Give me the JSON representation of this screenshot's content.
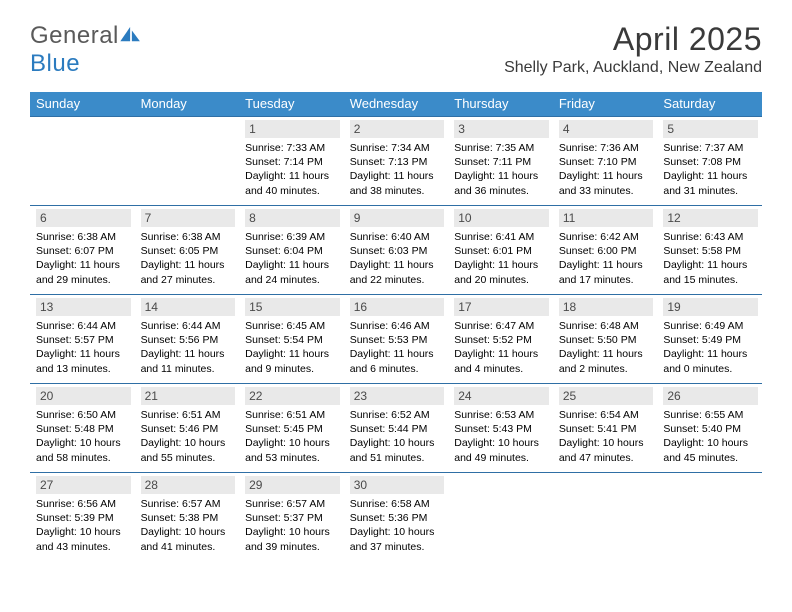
{
  "logo": {
    "part1": "General",
    "part2": "Blue"
  },
  "title": "April 2025",
  "subtitle": "Shelly Park, Auckland, New Zealand",
  "theme": {
    "header_bg": "#3b8bc9",
    "header_text": "#ffffff",
    "daynum_bg": "#e9e9e9",
    "daynum_text": "#4a4a4a",
    "row_border": "#2f6fa5",
    "title_color": "#3a3a3a",
    "logo_gray": "#5a5a5a",
    "logo_blue": "#2b7bbf",
    "body_text": "#000000",
    "page_bg": "#ffffff",
    "info_fontsize": 10.5,
    "header_fontsize": 13,
    "title_fontsize": 32,
    "subtitle_fontsize": 16
  },
  "weekdays": [
    "Sunday",
    "Monday",
    "Tuesday",
    "Wednesday",
    "Thursday",
    "Friday",
    "Saturday"
  ],
  "weeks": [
    [
      null,
      null,
      {
        "n": "1",
        "sunrise": "Sunrise: 7:33 AM",
        "sunset": "Sunset: 7:14 PM",
        "daylight": "Daylight: 11 hours and 40 minutes."
      },
      {
        "n": "2",
        "sunrise": "Sunrise: 7:34 AM",
        "sunset": "Sunset: 7:13 PM",
        "daylight": "Daylight: 11 hours and 38 minutes."
      },
      {
        "n": "3",
        "sunrise": "Sunrise: 7:35 AM",
        "sunset": "Sunset: 7:11 PM",
        "daylight": "Daylight: 11 hours and 36 minutes."
      },
      {
        "n": "4",
        "sunrise": "Sunrise: 7:36 AM",
        "sunset": "Sunset: 7:10 PM",
        "daylight": "Daylight: 11 hours and 33 minutes."
      },
      {
        "n": "5",
        "sunrise": "Sunrise: 7:37 AM",
        "sunset": "Sunset: 7:08 PM",
        "daylight": "Daylight: 11 hours and 31 minutes."
      }
    ],
    [
      {
        "n": "6",
        "sunrise": "Sunrise: 6:38 AM",
        "sunset": "Sunset: 6:07 PM",
        "daylight": "Daylight: 11 hours and 29 minutes."
      },
      {
        "n": "7",
        "sunrise": "Sunrise: 6:38 AM",
        "sunset": "Sunset: 6:05 PM",
        "daylight": "Daylight: 11 hours and 27 minutes."
      },
      {
        "n": "8",
        "sunrise": "Sunrise: 6:39 AM",
        "sunset": "Sunset: 6:04 PM",
        "daylight": "Daylight: 11 hours and 24 minutes."
      },
      {
        "n": "9",
        "sunrise": "Sunrise: 6:40 AM",
        "sunset": "Sunset: 6:03 PM",
        "daylight": "Daylight: 11 hours and 22 minutes."
      },
      {
        "n": "10",
        "sunrise": "Sunrise: 6:41 AM",
        "sunset": "Sunset: 6:01 PM",
        "daylight": "Daylight: 11 hours and 20 minutes."
      },
      {
        "n": "11",
        "sunrise": "Sunrise: 6:42 AM",
        "sunset": "Sunset: 6:00 PM",
        "daylight": "Daylight: 11 hours and 17 minutes."
      },
      {
        "n": "12",
        "sunrise": "Sunrise: 6:43 AM",
        "sunset": "Sunset: 5:58 PM",
        "daylight": "Daylight: 11 hours and 15 minutes."
      }
    ],
    [
      {
        "n": "13",
        "sunrise": "Sunrise: 6:44 AM",
        "sunset": "Sunset: 5:57 PM",
        "daylight": "Daylight: 11 hours and 13 minutes."
      },
      {
        "n": "14",
        "sunrise": "Sunrise: 6:44 AM",
        "sunset": "Sunset: 5:56 PM",
        "daylight": "Daylight: 11 hours and 11 minutes."
      },
      {
        "n": "15",
        "sunrise": "Sunrise: 6:45 AM",
        "sunset": "Sunset: 5:54 PM",
        "daylight": "Daylight: 11 hours and 9 minutes."
      },
      {
        "n": "16",
        "sunrise": "Sunrise: 6:46 AM",
        "sunset": "Sunset: 5:53 PM",
        "daylight": "Daylight: 11 hours and 6 minutes."
      },
      {
        "n": "17",
        "sunrise": "Sunrise: 6:47 AM",
        "sunset": "Sunset: 5:52 PM",
        "daylight": "Daylight: 11 hours and 4 minutes."
      },
      {
        "n": "18",
        "sunrise": "Sunrise: 6:48 AM",
        "sunset": "Sunset: 5:50 PM",
        "daylight": "Daylight: 11 hours and 2 minutes."
      },
      {
        "n": "19",
        "sunrise": "Sunrise: 6:49 AM",
        "sunset": "Sunset: 5:49 PM",
        "daylight": "Daylight: 11 hours and 0 minutes."
      }
    ],
    [
      {
        "n": "20",
        "sunrise": "Sunrise: 6:50 AM",
        "sunset": "Sunset: 5:48 PM",
        "daylight": "Daylight: 10 hours and 58 minutes."
      },
      {
        "n": "21",
        "sunrise": "Sunrise: 6:51 AM",
        "sunset": "Sunset: 5:46 PM",
        "daylight": "Daylight: 10 hours and 55 minutes."
      },
      {
        "n": "22",
        "sunrise": "Sunrise: 6:51 AM",
        "sunset": "Sunset: 5:45 PM",
        "daylight": "Daylight: 10 hours and 53 minutes."
      },
      {
        "n": "23",
        "sunrise": "Sunrise: 6:52 AM",
        "sunset": "Sunset: 5:44 PM",
        "daylight": "Daylight: 10 hours and 51 minutes."
      },
      {
        "n": "24",
        "sunrise": "Sunrise: 6:53 AM",
        "sunset": "Sunset: 5:43 PM",
        "daylight": "Daylight: 10 hours and 49 minutes."
      },
      {
        "n": "25",
        "sunrise": "Sunrise: 6:54 AM",
        "sunset": "Sunset: 5:41 PM",
        "daylight": "Daylight: 10 hours and 47 minutes."
      },
      {
        "n": "26",
        "sunrise": "Sunrise: 6:55 AM",
        "sunset": "Sunset: 5:40 PM",
        "daylight": "Daylight: 10 hours and 45 minutes."
      }
    ],
    [
      {
        "n": "27",
        "sunrise": "Sunrise: 6:56 AM",
        "sunset": "Sunset: 5:39 PM",
        "daylight": "Daylight: 10 hours and 43 minutes."
      },
      {
        "n": "28",
        "sunrise": "Sunrise: 6:57 AM",
        "sunset": "Sunset: 5:38 PM",
        "daylight": "Daylight: 10 hours and 41 minutes."
      },
      {
        "n": "29",
        "sunrise": "Sunrise: 6:57 AM",
        "sunset": "Sunset: 5:37 PM",
        "daylight": "Daylight: 10 hours and 39 minutes."
      },
      {
        "n": "30",
        "sunrise": "Sunrise: 6:58 AM",
        "sunset": "Sunset: 5:36 PM",
        "daylight": "Daylight: 10 hours and 37 minutes."
      },
      null,
      null,
      null
    ]
  ]
}
